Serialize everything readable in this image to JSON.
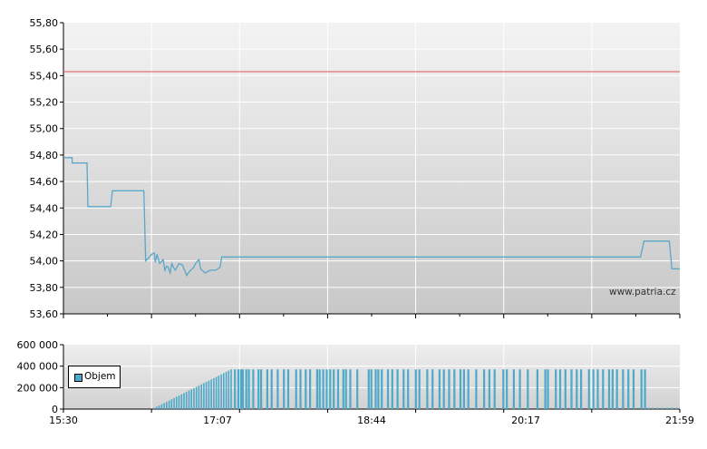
{
  "chart_data": [
    {
      "type": "line",
      "title": "",
      "xlabel": "",
      "ylabel": "",
      "ylim": [
        53.6,
        55.8
      ],
      "y_ticks": [
        "55,80",
        "55,60",
        "55,40",
        "55,20",
        "55,00",
        "54,80",
        "54,60",
        "54,40",
        "54,20",
        "54,00",
        "53,80",
        "53,60"
      ],
      "x_tick_labels": [
        "15:30",
        "17:07",
        "18:44",
        "20:17",
        "21:59"
      ],
      "grid": true,
      "reference_line": {
        "value": 55.43,
        "color": "#e05050"
      },
      "series": [
        {
          "color": "#5aa7c8",
          "points": [
            [
              0,
              54.78
            ],
            [
              1.0,
              54.78
            ],
            [
              1.0,
              54.74
            ],
            [
              2.7,
              54.74
            ],
            [
              2.8,
              54.41
            ],
            [
              5.4,
              54.41
            ],
            [
              5.6,
              54.53
            ],
            [
              9.2,
              54.53
            ],
            [
              9.4,
              54.0
            ],
            [
              9.7,
              54.02
            ],
            [
              10.1,
              54.05
            ],
            [
              10.4,
              54.06
            ],
            [
              10.5,
              53.99
            ],
            [
              10.7,
              54.05
            ],
            [
              11.0,
              53.98
            ],
            [
              11.4,
              54.01
            ],
            [
              11.6,
              53.93
            ],
            [
              11.8,
              53.96
            ],
            [
              12.0,
              53.95
            ],
            [
              12.2,
              53.91
            ],
            [
              12.4,
              53.98
            ],
            [
              12.6,
              53.95
            ],
            [
              12.8,
              53.93
            ],
            [
              13.2,
              53.98
            ],
            [
              13.6,
              53.97
            ],
            [
              14.1,
              53.89
            ],
            [
              14.4,
              53.92
            ],
            [
              14.9,
              53.95
            ],
            [
              15.1,
              53.98
            ],
            [
              15.5,
              54.01
            ],
            [
              15.7,
              53.94
            ],
            [
              16.2,
              53.91
            ],
            [
              16.8,
              53.93
            ],
            [
              17.4,
              53.93
            ],
            [
              17.9,
              53.95
            ],
            [
              18.1,
              54.03
            ],
            [
              66.0,
              54.03
            ],
            [
              66.4,
              54.15
            ],
            [
              69.3,
              54.15
            ],
            [
              69.6,
              53.94
            ],
            [
              70.5,
              53.94
            ]
          ]
        }
      ],
      "watermark": "www.patria.cz"
    },
    {
      "type": "bar",
      "title": "",
      "xlabel": "",
      "ylabel": "",
      "ylim": [
        0,
        600000
      ],
      "y_ticks": [
        "600 000",
        "400 000",
        "200 000",
        "0"
      ],
      "x_tick_labels": [
        "15:30",
        "17:07",
        "18:44",
        "20:17",
        "21:59"
      ],
      "legend": {
        "label": "Objem",
        "color": "#4ea9c9",
        "position": "left"
      },
      "ramp": {
        "x_start": 10.3,
        "x_end": 19.1,
        "count": 32,
        "y_start": 10000,
        "y_end": 370000
      },
      "bars": [
        [
          19.5,
          370000
        ],
        [
          19.9,
          370000
        ],
        [
          20.2,
          370000
        ],
        [
          20.4,
          370000
        ],
        [
          20.8,
          370000
        ],
        [
          21.1,
          370000
        ],
        [
          21.6,
          370000
        ],
        [
          22.2,
          370000
        ],
        [
          22.5,
          370000
        ],
        [
          23.2,
          370000
        ],
        [
          23.7,
          370000
        ],
        [
          24.4,
          370000
        ],
        [
          25.1,
          370000
        ],
        [
          25.6,
          370000
        ],
        [
          26.5,
          370000
        ],
        [
          27.0,
          370000
        ],
        [
          27.6,
          370000
        ],
        [
          28.1,
          370000
        ],
        [
          28.9,
          370000
        ],
        [
          29.2,
          370000
        ],
        [
          29.6,
          370000
        ],
        [
          30.0,
          370000
        ],
        [
          30.4,
          370000
        ],
        [
          30.8,
          370000
        ],
        [
          31.3,
          370000
        ],
        [
          31.9,
          370000
        ],
        [
          32.2,
          370000
        ],
        [
          32.7,
          370000
        ],
        [
          33.5,
          370000
        ],
        [
          34.8,
          370000
        ],
        [
          35.1,
          370000
        ],
        [
          35.6,
          370000
        ],
        [
          35.9,
          370000
        ],
        [
          36.3,
          370000
        ],
        [
          37.0,
          370000
        ],
        [
          37.5,
          370000
        ],
        [
          38.1,
          370000
        ],
        [
          38.8,
          370000
        ],
        [
          39.3,
          370000
        ],
        [
          40.2,
          370000
        ],
        [
          40.6,
          370000
        ],
        [
          41.5,
          370000
        ],
        [
          42.1,
          370000
        ],
        [
          42.9,
          370000
        ],
        [
          43.4,
          370000
        ],
        [
          44.0,
          370000
        ],
        [
          44.6,
          370000
        ],
        [
          45.3,
          370000
        ],
        [
          45.7,
          370000
        ],
        [
          46.2,
          370000
        ],
        [
          47.1,
          370000
        ],
        [
          48.0,
          370000
        ],
        [
          48.6,
          370000
        ],
        [
          49.2,
          370000
        ],
        [
          50.2,
          370000
        ],
        [
          50.6,
          370000
        ],
        [
          51.4,
          370000
        ],
        [
          52.1,
          370000
        ],
        [
          53.0,
          370000
        ],
        [
          54.1,
          370000
        ],
        [
          55.0,
          370000
        ],
        [
          55.3,
          370000
        ],
        [
          56.2,
          370000
        ],
        [
          56.7,
          370000
        ],
        [
          57.3,
          370000
        ],
        [
          58.0,
          370000
        ],
        [
          58.6,
          370000
        ],
        [
          59.1,
          370000
        ],
        [
          60.0,
          370000
        ],
        [
          60.5,
          370000
        ],
        [
          61.0,
          370000
        ],
        [
          61.6,
          370000
        ],
        [
          62.3,
          370000
        ],
        [
          62.7,
          370000
        ],
        [
          63.2,
          370000
        ],
        [
          63.9,
          370000
        ],
        [
          64.5,
          370000
        ],
        [
          65.1,
          370000
        ],
        [
          66.0,
          370000
        ],
        [
          66.4,
          370000
        ],
        [
          66.8,
          12000
        ],
        [
          67.3,
          12000
        ],
        [
          67.8,
          12000
        ],
        [
          68.4,
          12000
        ],
        [
          69.0,
          12000
        ],
        [
          69.5,
          12000
        ],
        [
          70.0,
          12000
        ]
      ]
    }
  ]
}
